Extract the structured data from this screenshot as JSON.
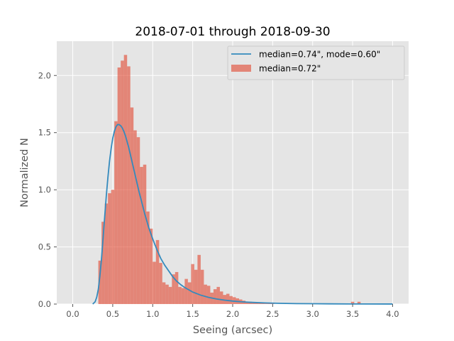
{
  "chart_data": {
    "type": "bar",
    "title": "2018-07-01 through 2018-09-30",
    "xlabel": "Seeing (arcsec)",
    "ylabel": "Normalized N",
    "xlim": [
      -0.2,
      4.2
    ],
    "ylim": [
      0,
      2.3
    ],
    "xticks": [
      0.0,
      0.5,
      1.0,
      1.5,
      2.0,
      2.5,
      3.0,
      3.5,
      4.0
    ],
    "xtick_labels": [
      "0.0",
      "0.5",
      "1.0",
      "1.5",
      "2.0",
      "2.5",
      "3.0",
      "3.5",
      "4.0"
    ],
    "yticks": [
      0.0,
      0.5,
      1.0,
      1.5,
      2.0
    ],
    "ytick_labels": [
      "0.0",
      "0.5",
      "1.0",
      "1.5",
      "2.0"
    ],
    "grid": true,
    "legend_position": "top-right",
    "colors": {
      "background": "#e5e5e5",
      "grid": "#ffffff",
      "histogram": "#e24a33",
      "curve": "#348abd"
    },
    "histogram": {
      "name": "median=0.72\"",
      "bin_width": 0.04,
      "bins_start": [
        0.32,
        0.36,
        0.4,
        0.44,
        0.48,
        0.52,
        0.56,
        0.6,
        0.64,
        0.68,
        0.72,
        0.76,
        0.8,
        0.84,
        0.88,
        0.92,
        0.96,
        1.0,
        1.04,
        1.08,
        1.12,
        1.16,
        1.2,
        1.24,
        1.28,
        1.32,
        1.36,
        1.4,
        1.44,
        1.48,
        1.52,
        1.56,
        1.6,
        1.64,
        1.68,
        1.72,
        1.76,
        1.8,
        1.84,
        1.88,
        1.92,
        1.96,
        2.0,
        2.04,
        2.08,
        2.12,
        2.16,
        2.2,
        2.24,
        2.28,
        2.32,
        2.36,
        2.4,
        2.44,
        2.48,
        3.48,
        3.56
      ],
      "values": [
        0.38,
        0.72,
        0.88,
        0.97,
        1.0,
        1.6,
        2.07,
        2.13,
        2.18,
        2.08,
        1.72,
        1.52,
        1.46,
        1.2,
        1.22,
        0.81,
        0.66,
        0.37,
        0.56,
        0.36,
        0.19,
        0.17,
        0.15,
        0.26,
        0.28,
        0.15,
        0.14,
        0.22,
        0.19,
        0.35,
        0.3,
        0.43,
        0.3,
        0.17,
        0.16,
        0.1,
        0.13,
        0.15,
        0.11,
        0.08,
        0.09,
        0.07,
        0.06,
        0.05,
        0.04,
        0.03,
        0.02,
        0.02,
        0.015,
        0.01,
        0.01,
        0.01,
        0.005,
        0.005,
        0.005,
        0.02,
        0.02
      ]
    },
    "curve": {
      "name": "median=0.74\", mode=0.60\"",
      "x": [
        0.25,
        0.28,
        0.3,
        0.32,
        0.34,
        0.36,
        0.38,
        0.4,
        0.42,
        0.44,
        0.46,
        0.48,
        0.5,
        0.52,
        0.54,
        0.56,
        0.58,
        0.6,
        0.62,
        0.64,
        0.66,
        0.68,
        0.7,
        0.72,
        0.75,
        0.78,
        0.8,
        0.83,
        0.86,
        0.9,
        0.95,
        1.0,
        1.05,
        1.1,
        1.15,
        1.2,
        1.25,
        1.3,
        1.35,
        1.4,
        1.5,
        1.6,
        1.7,
        1.8,
        1.9,
        2.0,
        2.1,
        2.2,
        2.4,
        2.6,
        2.8,
        3.0,
        3.2,
        3.5,
        4.0
      ],
      "y": [
        0.0,
        0.02,
        0.06,
        0.13,
        0.25,
        0.4,
        0.58,
        0.77,
        0.95,
        1.11,
        1.25,
        1.36,
        1.45,
        1.51,
        1.55,
        1.57,
        1.57,
        1.56,
        1.54,
        1.51,
        1.47,
        1.42,
        1.37,
        1.31,
        1.22,
        1.13,
        1.07,
        0.98,
        0.9,
        0.79,
        0.67,
        0.57,
        0.48,
        0.4,
        0.34,
        0.29,
        0.24,
        0.2,
        0.17,
        0.145,
        0.105,
        0.078,
        0.058,
        0.044,
        0.034,
        0.026,
        0.02,
        0.016,
        0.01,
        0.006,
        0.004,
        0.003,
        0.002,
        0.001,
        0.0005
      ]
    }
  }
}
